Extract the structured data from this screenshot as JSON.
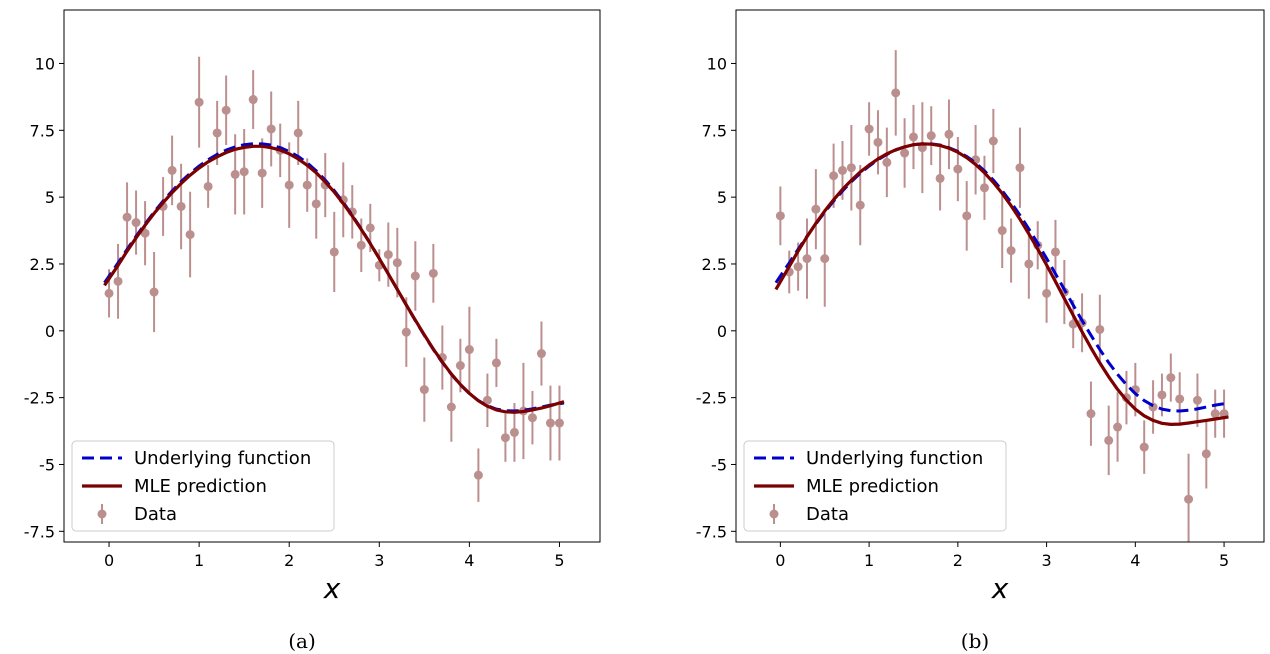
{
  "chart_data": [
    {
      "type": "scatter",
      "caption": "(a)",
      "xlabel": "x",
      "ylabel": "",
      "xlim": [
        -0.5,
        5.45
      ],
      "ylim": [
        -7.9,
        12.0
      ],
      "xticks": [
        0,
        1,
        2,
        3,
        4,
        5
      ],
      "yticks": [
        -7.5,
        -5.0,
        -2.5,
        0.0,
        2.5,
        5.0,
        7.5,
        10.0
      ],
      "grid": false,
      "legend_position": "lower-left",
      "legend": [
        "Underlying function",
        "MLE prediction",
        "Data"
      ],
      "series": [
        {
          "name": "Underlying function",
          "kind": "line",
          "style": "dashed",
          "color": "#0000CC",
          "x": [
            -0.05,
            0.1,
            0.2,
            0.3,
            0.4,
            0.5,
            0.6,
            0.7,
            0.8,
            0.9,
            1.0,
            1.1,
            1.2,
            1.3,
            1.4,
            1.5,
            1.6,
            1.7,
            1.8,
            1.9,
            2.0,
            2.1,
            2.2,
            2.3,
            2.4,
            2.5,
            2.6,
            2.7,
            2.8,
            2.9,
            3.0,
            3.1,
            3.2,
            3.3,
            3.4,
            3.5,
            3.6,
            3.7,
            3.8,
            3.9,
            4.0,
            4.1,
            4.2,
            4.3,
            4.4,
            4.5,
            4.6,
            4.7,
            4.8,
            4.9,
            5.05
          ],
          "y": [
            1.8,
            2.54,
            3.05,
            3.54,
            4.0,
            4.44,
            4.85,
            5.23,
            5.58,
            5.89,
            6.16,
            6.4,
            6.6,
            6.76,
            6.88,
            6.96,
            7.0,
            6.99,
            6.95,
            6.85,
            6.71,
            6.52,
            6.28,
            5.98,
            5.64,
            5.24,
            4.8,
            4.32,
            3.81,
            3.27,
            2.71,
            2.13,
            1.55,
            0.96,
            0.38,
            -0.17,
            -0.7,
            -1.19,
            -1.63,
            -2.02,
            -2.35,
            -2.61,
            -2.8,
            -2.93,
            -2.99,
            -3.0,
            -2.97,
            -2.92,
            -2.85,
            -2.78,
            -2.7
          ]
        },
        {
          "name": "MLE prediction",
          "kind": "line",
          "style": "solid",
          "color": "#7B0000",
          "x": [
            -0.05,
            0.1,
            0.2,
            0.3,
            0.4,
            0.5,
            0.6,
            0.7,
            0.8,
            0.9,
            1.0,
            1.1,
            1.2,
            1.3,
            1.4,
            1.5,
            1.6,
            1.7,
            1.8,
            1.9,
            2.0,
            2.1,
            2.2,
            2.3,
            2.4,
            2.5,
            2.6,
            2.7,
            2.8,
            2.9,
            3.0,
            3.1,
            3.2,
            3.3,
            3.4,
            3.5,
            3.6,
            3.7,
            3.8,
            3.9,
            4.0,
            4.1,
            4.2,
            4.3,
            4.4,
            4.5,
            4.6,
            4.7,
            4.8,
            4.9,
            5.05
          ],
          "y": [
            1.7,
            2.45,
            2.98,
            3.48,
            3.95,
            4.39,
            4.79,
            5.17,
            5.51,
            5.82,
            6.09,
            6.32,
            6.51,
            6.67,
            6.79,
            6.86,
            6.9,
            6.9,
            6.85,
            6.76,
            6.62,
            6.43,
            6.19,
            5.91,
            5.57,
            5.19,
            4.76,
            4.29,
            3.79,
            3.26,
            2.7,
            2.13,
            1.55,
            0.97,
            0.4,
            -0.15,
            -0.68,
            -1.17,
            -1.62,
            -2.01,
            -2.34,
            -2.62,
            -2.82,
            -2.96,
            -3.03,
            -3.05,
            -3.02,
            -2.96,
            -2.89,
            -2.8,
            -2.65
          ]
        },
        {
          "name": "Data",
          "kind": "errorbar",
          "color": "#BC8F8F",
          "x": [
            0.0,
            0.1,
            0.2,
            0.3,
            0.4,
            0.5,
            0.6,
            0.7,
            0.8,
            0.9,
            1.0,
            1.1,
            1.2,
            1.3,
            1.4,
            1.5,
            1.6,
            1.7,
            1.8,
            1.9,
            2.0,
            2.1,
            2.2,
            2.3,
            2.4,
            2.5,
            2.6,
            2.7,
            2.8,
            2.9,
            3.0,
            3.1,
            3.2,
            3.3,
            3.4,
            3.5,
            3.6,
            3.7,
            3.8,
            3.9,
            4.0,
            4.1,
            4.2,
            4.3,
            4.4,
            4.5,
            4.6,
            4.7,
            4.8,
            4.9,
            5.0
          ],
          "y": [
            1.4,
            1.85,
            4.25,
            4.05,
            3.65,
            1.45,
            4.65,
            6.0,
            4.65,
            3.6,
            8.55,
            5.4,
            7.4,
            8.25,
            5.85,
            5.95,
            8.65,
            5.9,
            7.55,
            6.75,
            5.45,
            7.4,
            5.45,
            4.75,
            5.45,
            2.95,
            4.9,
            4.45,
            3.2,
            3.85,
            2.45,
            2.85,
            2.55,
            -0.05,
            2.05,
            -2.2,
            2.15,
            -1.0,
            -2.85,
            -1.3,
            -0.7,
            -5.4,
            -2.6,
            -1.2,
            -4.0,
            -3.8,
            -3.0,
            -3.25,
            -0.85,
            -3.45,
            -3.45
          ],
          "err": [
            0.9,
            1.4,
            1.3,
            1.2,
            1.2,
            1.5,
            1.1,
            1.3,
            1.6,
            1.6,
            1.7,
            0.8,
            1.2,
            1.3,
            1.5,
            1.6,
            1.1,
            1.3,
            1.4,
            1.0,
            1.6,
            1.2,
            1.0,
            1.3,
            1.2,
            1.5,
            1.4,
            1.0,
            1.0,
            0.9,
            0.6,
            1.2,
            1.3,
            1.3,
            1.3,
            1.2,
            1.1,
            1.2,
            1.3,
            1.0,
            1.6,
            1.0,
            1.0,
            0.9,
            0.9,
            1.1,
            1.8,
            1.0,
            1.2,
            1.4,
            1.4
          ]
        }
      ]
    },
    {
      "type": "scatter",
      "caption": "(b)",
      "xlabel": "x",
      "ylabel": "",
      "xlim": [
        -0.5,
        5.45
      ],
      "ylim": [
        -7.9,
        12.0
      ],
      "xticks": [
        0,
        1,
        2,
        3,
        4,
        5
      ],
      "yticks": [
        -7.5,
        -5.0,
        -2.5,
        0.0,
        2.5,
        5.0,
        7.5,
        10.0
      ],
      "grid": false,
      "legend_position": "lower-left",
      "legend": [
        "Underlying function",
        "MLE prediction",
        "Data"
      ],
      "series": [
        {
          "name": "Underlying function",
          "kind": "line",
          "style": "dashed",
          "color": "#0000CC",
          "x": [
            -0.05,
            0.1,
            0.2,
            0.3,
            0.4,
            0.5,
            0.6,
            0.7,
            0.8,
            0.9,
            1.0,
            1.1,
            1.2,
            1.3,
            1.4,
            1.5,
            1.6,
            1.7,
            1.8,
            1.9,
            2.0,
            2.1,
            2.2,
            2.3,
            2.4,
            2.5,
            2.6,
            2.7,
            2.8,
            2.9,
            3.0,
            3.1,
            3.2,
            3.3,
            3.4,
            3.5,
            3.6,
            3.7,
            3.8,
            3.9,
            4.0,
            4.1,
            4.2,
            4.3,
            4.4,
            4.5,
            4.6,
            4.7,
            4.8,
            4.9,
            5.05
          ],
          "y": [
            1.8,
            2.54,
            3.05,
            3.54,
            4.0,
            4.44,
            4.85,
            5.23,
            5.58,
            5.89,
            6.16,
            6.4,
            6.6,
            6.76,
            6.88,
            6.96,
            7.0,
            6.99,
            6.95,
            6.85,
            6.71,
            6.52,
            6.28,
            5.98,
            5.64,
            5.24,
            4.8,
            4.32,
            3.81,
            3.27,
            2.71,
            2.13,
            1.55,
            0.96,
            0.38,
            -0.17,
            -0.7,
            -1.19,
            -1.63,
            -2.02,
            -2.35,
            -2.61,
            -2.8,
            -2.93,
            -2.99,
            -3.0,
            -2.97,
            -2.92,
            -2.85,
            -2.78,
            -2.7
          ]
        },
        {
          "name": "MLE prediction",
          "kind": "line",
          "style": "solid",
          "color": "#7B0000",
          "x": [
            -0.05,
            0.1,
            0.2,
            0.3,
            0.4,
            0.5,
            0.6,
            0.7,
            0.8,
            0.9,
            1.0,
            1.1,
            1.2,
            1.3,
            1.4,
            1.5,
            1.6,
            1.7,
            1.8,
            1.9,
            2.0,
            2.1,
            2.2,
            2.3,
            2.4,
            2.5,
            2.6,
            2.7,
            2.8,
            2.9,
            3.0,
            3.1,
            3.2,
            3.3,
            3.4,
            3.5,
            3.6,
            3.7,
            3.8,
            3.9,
            4.0,
            4.1,
            4.2,
            4.3,
            4.4,
            4.5,
            4.6,
            4.7,
            4.8,
            4.9,
            5.05
          ],
          "y": [
            1.55,
            2.4,
            2.98,
            3.52,
            4.02,
            4.48,
            4.9,
            5.29,
            5.63,
            5.94,
            6.2,
            6.43,
            6.62,
            6.77,
            6.88,
            6.96,
            6.99,
            6.98,
            6.93,
            6.83,
            6.68,
            6.48,
            6.22,
            5.91,
            5.55,
            5.14,
            4.68,
            4.17,
            3.63,
            3.06,
            2.46,
            1.84,
            1.21,
            0.58,
            -0.04,
            -0.64,
            -1.2,
            -1.72,
            -2.19,
            -2.6,
            -2.93,
            -3.18,
            -3.35,
            -3.46,
            -3.5,
            -3.49,
            -3.45,
            -3.4,
            -3.35,
            -3.3,
            -3.22
          ]
        },
        {
          "name": "Data",
          "kind": "errorbar",
          "color": "#BC8F8F",
          "x": [
            0.0,
            0.1,
            0.2,
            0.3,
            0.4,
            0.5,
            0.6,
            0.7,
            0.8,
            0.9,
            1.0,
            1.1,
            1.2,
            1.3,
            1.4,
            1.5,
            1.6,
            1.7,
            1.8,
            1.9,
            2.0,
            2.1,
            2.2,
            2.3,
            2.4,
            2.5,
            2.6,
            2.7,
            2.8,
            2.9,
            3.0,
            3.1,
            3.2,
            3.3,
            3.4,
            3.5,
            3.6,
            3.7,
            3.8,
            3.9,
            4.0,
            4.1,
            4.2,
            4.3,
            4.4,
            4.5,
            4.6,
            4.7,
            4.8,
            4.9,
            5.0
          ],
          "y": [
            4.3,
            2.2,
            2.4,
            2.7,
            4.55,
            2.7,
            5.8,
            6.0,
            6.1,
            4.7,
            7.55,
            7.05,
            6.3,
            8.9,
            6.65,
            7.25,
            6.85,
            7.3,
            5.7,
            7.35,
            6.05,
            4.3,
            6.4,
            5.35,
            7.1,
            3.75,
            3.0,
            6.1,
            2.5,
            3.2,
            1.4,
            2.95,
            1.45,
            0.25,
            0.3,
            -3.1,
            0.05,
            -4.1,
            -3.6,
            -2.5,
            -2.2,
            -4.35,
            -2.85,
            -2.4,
            -1.75,
            -2.55,
            -6.3,
            -2.6,
            -4.6,
            -3.1,
            -3.1
          ],
          "err": [
            1.1,
            0.8,
            0.9,
            1.5,
            1.5,
            1.8,
            1.2,
            1.1,
            1.6,
            1.5,
            1.0,
            1.2,
            1.3,
            1.6,
            1.3,
            1.2,
            1.7,
            1.1,
            1.2,
            1.3,
            1.2,
            1.3,
            1.3,
            1.2,
            1.2,
            1.4,
            1.2,
            1.5,
            1.3,
            0.9,
            1.1,
            1.2,
            1.2,
            0.9,
            1.1,
            1.2,
            1.3,
            1.3,
            1.3,
            1.0,
            1.0,
            1.0,
            1.0,
            0.8,
            0.9,
            1.0,
            1.7,
            1.0,
            1.3,
            0.9,
            0.9
          ]
        }
      ]
    }
  ]
}
